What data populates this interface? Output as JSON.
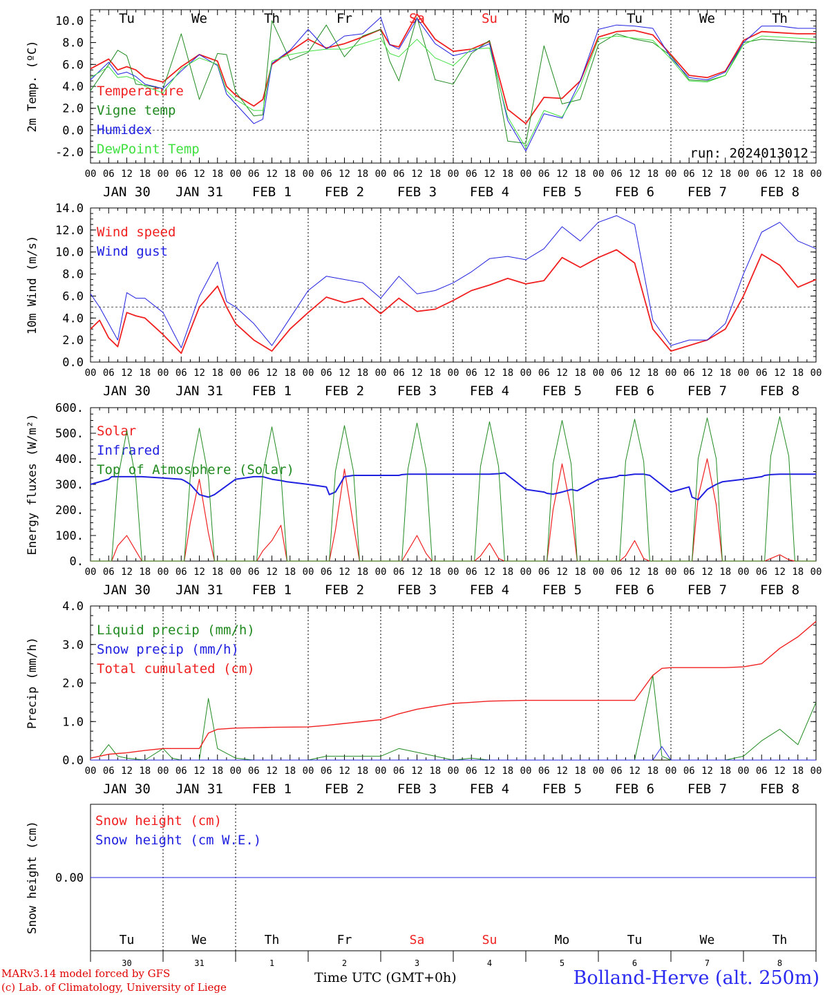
{
  "footer": {
    "credit_line1": "MARv3.14 model forced by GFS",
    "credit_line2": "(c) Lab. of Climatology, University of Liege",
    "x_axis_title": "Time UTC (GMT+0h)",
    "station": "Bolland-Herve (alt. 250m)"
  },
  "days": {
    "date_labels": [
      "JAN 30",
      "JAN 31",
      "FEB  1",
      "FEB  2",
      "FEB  3",
      "FEB  4",
      "FEB  5",
      "FEB  6",
      "FEB  7",
      "FEB  8"
    ],
    "weekday_labels": [
      "Tu",
      "We",
      "Th",
      "Fr",
      "Sa",
      "Su",
      "Mo",
      "Tu",
      "We",
      "Th"
    ],
    "day_numbers": [
      "30",
      "31",
      "1",
      "2",
      "3",
      "4",
      "5",
      "6",
      "7",
      "8"
    ],
    "weekend_color": "#f02020",
    "weekday_color": "#000000",
    "hour_ticks": [
      "00",
      "06",
      "12",
      "18"
    ],
    "final_tick": "00"
  },
  "chart_data": [
    {
      "type": "line",
      "ylabel": "2m Temp. (ºC)",
      "ylim": [
        -3.0,
        11.0
      ],
      "yticks": [
        "-2.0",
        "0.0",
        "2.0",
        "4.0",
        "6.0",
        "8.0",
        "10.0"
      ],
      "yticks_values": [
        -2,
        0,
        2,
        4,
        6,
        8,
        10
      ],
      "reference_line": 0,
      "run_label": "run: 2024013012",
      "x_hours": [
        0,
        6,
        9,
        12,
        15,
        18,
        24,
        30,
        36,
        42,
        45,
        48,
        54,
        57,
        60,
        66,
        72,
        78,
        84,
        90,
        96,
        99,
        102,
        108,
        114,
        120,
        126,
        132,
        138,
        144,
        150,
        156,
        162,
        168,
        174,
        180,
        186,
        192,
        198,
        204,
        210,
        216,
        222,
        228,
        234,
        240
      ],
      "series": [
        {
          "name": "Temperature",
          "color": "#f02020",
          "width": 1.8,
          "values": [
            5.6,
            6.5,
            5.5,
            5.8,
            5.5,
            4.8,
            4.4,
            5.8,
            6.9,
            6.3,
            4.0,
            3.2,
            2.2,
            2.8,
            6.0,
            7.2,
            8.3,
            7.5,
            7.9,
            8.5,
            9.2,
            7.8,
            7.6,
            10.6,
            8.3,
            7.2,
            7.4,
            8.1,
            1.9,
            0.6,
            3.0,
            2.9,
            4.5,
            8.5,
            9.0,
            9.1,
            8.7,
            6.9,
            5.0,
            4.8,
            5.4,
            8.2,
            9.0,
            8.9,
            8.8,
            8.8
          ]
        },
        {
          "name": "Vigne temp",
          "color": "#208a20",
          "width": 1.0,
          "values": [
            3.6,
            6.0,
            7.3,
            6.8,
            4.2,
            4.1,
            3.8,
            8.8,
            2.8,
            7.0,
            6.9,
            3.5,
            1.3,
            1.4,
            10.0,
            6.4,
            7.1,
            9.6,
            6.7,
            8.6,
            9.2,
            6.3,
            4.5,
            10.3,
            4.6,
            4.2,
            7.0,
            8.2,
            -1.0,
            -1.2,
            7.7,
            2.4,
            2.8,
            7.8,
            8.8,
            8.3,
            8.0,
            6.8,
            4.6,
            4.5,
            5.0,
            8.0,
            8.3,
            8.2,
            8.1,
            8.0
          ]
        },
        {
          "name": "Humidex",
          "color": "#2020e0",
          "width": 1.0,
          "values": [
            4.6,
            6.2,
            5.1,
            5.3,
            4.9,
            4.2,
            3.8,
            5.4,
            6.9,
            5.9,
            3.3,
            2.4,
            0.6,
            1.0,
            6.1,
            7.3,
            9.2,
            7.4,
            8.6,
            8.8,
            10.3,
            7.8,
            7.4,
            10.2,
            7.9,
            6.8,
            7.2,
            7.9,
            0.9,
            -1.9,
            1.5,
            1.1,
            4.5,
            9.2,
            9.6,
            9.5,
            9.3,
            6.6,
            4.8,
            4.6,
            5.3,
            8.0,
            9.5,
            9.5,
            9.3,
            9.3
          ]
        },
        {
          "name": "DewPoint Temp",
          "color": "#40e040",
          "width": 1.0,
          "values": [
            4.8,
            5.8,
            4.8,
            4.9,
            4.6,
            4.0,
            3.4,
            5.6,
            6.6,
            6.0,
            3.6,
            2.8,
            1.8,
            1.8,
            6.3,
            6.9,
            7.2,
            7.4,
            7.4,
            7.9,
            8.4,
            7.0,
            6.7,
            8.3,
            6.6,
            5.9,
            7.4,
            7.5,
            1.2,
            -1.6,
            1.8,
            1.2,
            4.0,
            8.3,
            8.6,
            8.4,
            8.2,
            6.5,
            4.5,
            4.4,
            5.0,
            7.8,
            8.6,
            8.5,
            8.4,
            8.3
          ]
        }
      ]
    },
    {
      "type": "line",
      "ylabel": "10m Wind (m/s)",
      "ylim": [
        0,
        14
      ],
      "yticks": [
        "0.0",
        "2.0",
        "4.0",
        "6.0",
        "8.0",
        "10.0",
        "12.0",
        "14.0"
      ],
      "yticks_values": [
        0,
        2,
        4,
        6,
        8,
        10,
        12,
        14
      ],
      "reference_line": 5,
      "x_hours": [
        0,
        3,
        6,
        9,
        12,
        15,
        18,
        24,
        30,
        36,
        42,
        45,
        48,
        54,
        60,
        66,
        72,
        78,
        84,
        90,
        96,
        102,
        108,
        114,
        120,
        126,
        132,
        138,
        144,
        150,
        156,
        162,
        168,
        174,
        180,
        186,
        192,
        198,
        204,
        210,
        216,
        222,
        228,
        234,
        240
      ],
      "series": [
        {
          "name": "Wind speed",
          "color": "#f02020",
          "width": 1.8,
          "values": [
            3.0,
            3.8,
            2.2,
            1.4,
            4.5,
            4.2,
            4.0,
            2.5,
            0.8,
            5.0,
            6.9,
            5.0,
            3.5,
            2.0,
            1.0,
            3.0,
            4.5,
            5.9,
            5.4,
            5.8,
            4.4,
            5.8,
            4.6,
            4.8,
            5.6,
            6.5,
            7.0,
            7.6,
            7.1,
            7.4,
            9.5,
            8.6,
            9.5,
            10.2,
            9.0,
            3.0,
            1.0,
            1.5,
            2.0,
            3.0,
            6.0,
            9.8,
            8.8,
            6.8,
            7.5
          ]
        },
        {
          "name": "Wind gust",
          "color": "#2020e0",
          "width": 1.0,
          "values": [
            6.2,
            5.0,
            3.5,
            2.0,
            6.3,
            5.8,
            5.8,
            4.5,
            1.3,
            6.0,
            9.1,
            5.5,
            5.0,
            3.5,
            1.5,
            4.0,
            6.5,
            7.8,
            7.5,
            7.2,
            5.8,
            7.8,
            6.2,
            6.5,
            7.2,
            8.2,
            9.4,
            9.6,
            9.3,
            10.3,
            12.3,
            11.0,
            12.7,
            13.3,
            12.5,
            3.8,
            1.5,
            2.0,
            2.0,
            3.5,
            8.0,
            11.8,
            12.7,
            11.0,
            10.3
          ]
        }
      ]
    },
    {
      "type": "line",
      "ylabel": "Energy fluxes (W/m²)",
      "ylim": [
        0,
        600
      ],
      "yticks": [
        "0.",
        "100.",
        "200.",
        "300.",
        "400.",
        "500.",
        "600."
      ],
      "yticks_values": [
        0,
        100,
        200,
        300,
        400,
        500,
        600
      ],
      "x_hours": [
        0,
        6,
        7,
        9,
        12,
        15,
        17,
        24,
        30,
        31,
        33,
        36,
        39,
        41,
        48,
        54,
        55,
        57,
        60,
        63,
        65,
        72,
        78,
        79,
        81,
        84,
        87,
        89,
        96,
        102,
        103,
        105,
        108,
        111,
        113,
        120,
        126,
        127,
        129,
        132,
        135,
        137,
        144,
        150,
        151,
        153,
        156,
        159,
        161,
        168,
        174,
        175,
        177,
        180,
        183,
        185,
        192,
        198,
        199,
        201,
        204,
        207,
        209,
        216,
        222,
        223,
        225,
        228,
        231,
        233,
        240
      ],
      "series": [
        {
          "name": "Solar",
          "color": "#f02020",
          "width": 1.2,
          "values": [
            0,
            0,
            0,
            60,
            100,
            40,
            0,
            0,
            0,
            0,
            150,
            320,
            110,
            0,
            0,
            0,
            0,
            40,
            80,
            140,
            0,
            0,
            0,
            0,
            120,
            360,
            140,
            0,
            0,
            0,
            0,
            40,
            100,
            30,
            0,
            0,
            0,
            0,
            20,
            70,
            10,
            0,
            0,
            0,
            0,
            200,
            380,
            200,
            0,
            0,
            0,
            0,
            20,
            80,
            10,
            0,
            0,
            0,
            0,
            250,
            400,
            220,
            0,
            0,
            0,
            0,
            10,
            25,
            5,
            0,
            0
          ]
        },
        {
          "name": "Infrared",
          "color": "#2020e0",
          "width": 2.0,
          "values": [
            300,
            320,
            330,
            330,
            330,
            330,
            330,
            325,
            320,
            315,
            300,
            260,
            250,
            260,
            320,
            330,
            330,
            330,
            320,
            315,
            310,
            300,
            290,
            260,
            270,
            330,
            335,
            335,
            335,
            335,
            338,
            340,
            340,
            340,
            340,
            340,
            340,
            340,
            340,
            340,
            342,
            345,
            280,
            270,
            265,
            262,
            270,
            280,
            275,
            320,
            330,
            335,
            335,
            340,
            340,
            335,
            270,
            290,
            250,
            240,
            280,
            300,
            310,
            320,
            330,
            335,
            338,
            340,
            340,
            340,
            340
          ]
        },
        {
          "name": "Top of Atmosphere (Solar)",
          "color": "#208a20",
          "width": 1.0,
          "values": [
            0,
            0,
            0,
            320,
            510,
            320,
            0,
            0,
            0,
            0,
            330,
            520,
            330,
            0,
            0,
            0,
            0,
            340,
            525,
            340,
            0,
            0,
            0,
            0,
            350,
            530,
            350,
            0,
            0,
            0,
            0,
            360,
            540,
            360,
            0,
            0,
            0,
            0,
            370,
            545,
            370,
            0,
            0,
            0,
            0,
            380,
            550,
            380,
            0,
            0,
            0,
            0,
            390,
            555,
            390,
            0,
            0,
            0,
            0,
            400,
            560,
            400,
            0,
            0,
            0,
            0,
            410,
            565,
            410,
            0,
            0
          ]
        }
      ]
    },
    {
      "type": "line",
      "ylabel": "Precip (mm/h)",
      "ylim": [
        0,
        4.0
      ],
      "yticks": [
        "0.0",
        "1.0",
        "2.0",
        "3.0",
        "4.0"
      ],
      "yticks_values": [
        0,
        1,
        2,
        3,
        4
      ],
      "x_hours": [
        0,
        3,
        6,
        9,
        12,
        18,
        24,
        27,
        30,
        36,
        39,
        42,
        48,
        54,
        60,
        72,
        78,
        84,
        96,
        102,
        108,
        114,
        120,
        126,
        132,
        144,
        150,
        156,
        168,
        180,
        186,
        189,
        192,
        195,
        198,
        204,
        210,
        216,
        222,
        228,
        234,
        240
      ],
      "series": [
        {
          "name": "Liquid precip (mm/h)",
          "color": "#208a20",
          "width": 1.0,
          "values": [
            0.05,
            0.1,
            0.4,
            0.1,
            0.05,
            0.0,
            0.3,
            0.05,
            0.0,
            0.0,
            1.6,
            0.3,
            0.05,
            0.0,
            0.0,
            0.0,
            0.1,
            0.1,
            0.1,
            0.3,
            0.2,
            0.1,
            0.0,
            0.05,
            0.0,
            0.0,
            0.0,
            0.0,
            0.0,
            0.0,
            2.2,
            0.1,
            0.0,
            0.0,
            0.0,
            0.0,
            0.0,
            0.1,
            0.5,
            0.8,
            0.4,
            1.5
          ]
        },
        {
          "name": "Snow precip (mm/h)",
          "color": "#2020e0",
          "width": 1.0,
          "values": [
            0.0,
            0.0,
            0.0,
            0.0,
            0.0,
            0.0,
            0.0,
            0.0,
            0.0,
            0.0,
            0.0,
            0.0,
            0.0,
            0.0,
            0.0,
            0.0,
            0.0,
            0.0,
            0.0,
            0.0,
            0.0,
            0.0,
            0.0,
            0.0,
            0.0,
            0.0,
            0.0,
            0.0,
            0.0,
            0.0,
            0.0,
            0.35,
            0.0,
            0.0,
            0.0,
            0.0,
            0.0,
            0.0,
            0.0,
            0.0,
            0.0,
            0.0
          ]
        },
        {
          "name": "Total cumulated (cm)",
          "color": "#f02020",
          "width": 1.4,
          "values": [
            0.05,
            0.1,
            0.15,
            0.17,
            0.19,
            0.25,
            0.3,
            0.3,
            0.3,
            0.3,
            0.7,
            0.8,
            0.83,
            0.84,
            0.85,
            0.86,
            0.9,
            0.95,
            1.05,
            1.2,
            1.32,
            1.4,
            1.47,
            1.5,
            1.53,
            1.55,
            1.55,
            1.55,
            1.55,
            1.55,
            2.2,
            2.38,
            2.4,
            2.4,
            2.4,
            2.4,
            2.4,
            2.42,
            2.5,
            2.9,
            3.2,
            3.6
          ]
        }
      ]
    },
    {
      "type": "line",
      "ylabel": "Snow height (cm)",
      "yticks": [
        "0.00"
      ],
      "yticks_values": [
        0
      ],
      "ylim": [
        -1,
        1
      ],
      "x_hours": [
        0,
        240
      ],
      "series": [
        {
          "name": "Snow height (cm)",
          "color": "#f02020",
          "width": 1.0,
          "values": [
            0,
            0
          ]
        },
        {
          "name": "Snow height (cm W.E.)",
          "color": "#2020e0",
          "width": 1.0,
          "values": [
            0,
            0
          ]
        }
      ]
    }
  ]
}
